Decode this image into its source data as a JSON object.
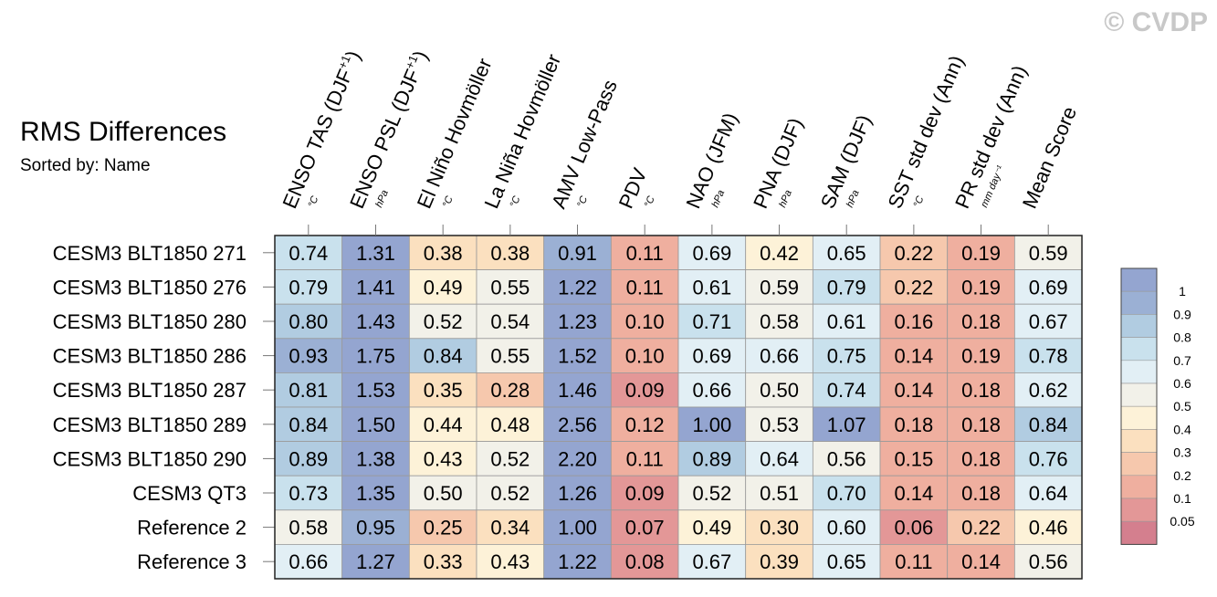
{
  "watermark": "© CVDP",
  "chart_data": {
    "type": "heatmap",
    "title": "RMS Differences",
    "subtitle": "Sorted by: Name",
    "columns": [
      {
        "label": "ENSO TAS (DJF",
        "sup": "+1",
        "tail": ")",
        "unit": "°C"
      },
      {
        "label": "ENSO PSL (DJF",
        "sup": "+1",
        "tail": ")",
        "unit": "hPa"
      },
      {
        "label": "El Niño Hovmöller",
        "sup": "",
        "tail": "",
        "unit": "°C"
      },
      {
        "label": "La Niña Hovmöller",
        "sup": "",
        "tail": "",
        "unit": "°C"
      },
      {
        "label": "AMV Low-Pass",
        "sup": "",
        "tail": "",
        "unit": "°C"
      },
      {
        "label": "PDV",
        "sup": "",
        "tail": "",
        "unit": "°C"
      },
      {
        "label": "NAO (JFM)",
        "sup": "",
        "tail": "",
        "unit": "hPa"
      },
      {
        "label": "PNA (DJF)",
        "sup": "",
        "tail": "",
        "unit": "hPa"
      },
      {
        "label": "SAM (DJF)",
        "sup": "",
        "tail": "",
        "unit": "hPa"
      },
      {
        "label": "SST std dev (Ann)",
        "sup": "",
        "tail": "",
        "unit": "°C"
      },
      {
        "label": "PR std dev (Ann)",
        "sup": "",
        "tail": "",
        "unit": "mm day⁻¹"
      },
      {
        "label": "Mean Score",
        "sup": "",
        "tail": "",
        "unit": ""
      }
    ],
    "rows": [
      {
        "name": "CESM3 BLT1850 271",
        "values": [
          0.74,
          1.31,
          0.38,
          0.38,
          0.91,
          0.11,
          0.69,
          0.42,
          0.65,
          0.22,
          0.19,
          0.59
        ]
      },
      {
        "name": "CESM3 BLT1850 276",
        "values": [
          0.79,
          1.41,
          0.49,
          0.55,
          1.22,
          0.11,
          0.61,
          0.59,
          0.79,
          0.22,
          0.19,
          0.69
        ]
      },
      {
        "name": "CESM3 BLT1850 280",
        "values": [
          0.8,
          1.43,
          0.52,
          0.54,
          1.23,
          0.1,
          0.71,
          0.58,
          0.61,
          0.16,
          0.18,
          0.67
        ]
      },
      {
        "name": "CESM3 BLT1850 286",
        "values": [
          0.93,
          1.75,
          0.84,
          0.55,
          1.52,
          0.1,
          0.69,
          0.66,
          0.75,
          0.14,
          0.19,
          0.78
        ]
      },
      {
        "name": "CESM3 BLT1850 287",
        "values": [
          0.81,
          1.53,
          0.35,
          0.28,
          1.46,
          0.09,
          0.66,
          0.5,
          0.74,
          0.14,
          0.18,
          0.62
        ]
      },
      {
        "name": "CESM3 BLT1850 289",
        "values": [
          0.84,
          1.5,
          0.44,
          0.48,
          2.56,
          0.12,
          1.0,
          0.53,
          1.07,
          0.18,
          0.18,
          0.84
        ]
      },
      {
        "name": "CESM3 BLT1850 290",
        "values": [
          0.89,
          1.38,
          0.43,
          0.52,
          2.2,
          0.11,
          0.89,
          0.64,
          0.56,
          0.15,
          0.18,
          0.76
        ]
      },
      {
        "name": "CESM3 QT3",
        "values": [
          0.73,
          1.35,
          0.5,
          0.52,
          1.26,
          0.09,
          0.52,
          0.51,
          0.7,
          0.14,
          0.18,
          0.64
        ]
      },
      {
        "name": "Reference 2",
        "values": [
          0.58,
          0.95,
          0.25,
          0.34,
          1.0,
          0.07,
          0.49,
          0.3,
          0.6,
          0.06,
          0.22,
          0.46
        ]
      },
      {
        "name": "Reference 3",
        "values": [
          0.66,
          1.27,
          0.33,
          0.43,
          1.22,
          0.08,
          0.67,
          0.39,
          0.65,
          0.11,
          0.14,
          0.56
        ]
      }
    ],
    "colorbar": {
      "levels": [
        "1",
        "0.9",
        "0.8",
        "0.7",
        "0.6",
        "0.5",
        "0.4",
        "0.3",
        "0.2",
        "0.1",
        "0.05"
      ],
      "thresholds": [
        0.05,
        0.1,
        0.2,
        0.3,
        0.4,
        0.5,
        0.6,
        0.7,
        0.8,
        0.9,
        1.0
      ],
      "colors": [
        "#d47f8e",
        "#e39797",
        "#efaf9f",
        "#f6c8ad",
        "#fbe0bf",
        "#fdf2d8",
        "#f2f1e9",
        "#e2eff5",
        "#c9e1ed",
        "#b1cce1",
        "#9bb0d4",
        "#94a5d0"
      ]
    },
    "grid": true,
    "legend_position": "right"
  }
}
